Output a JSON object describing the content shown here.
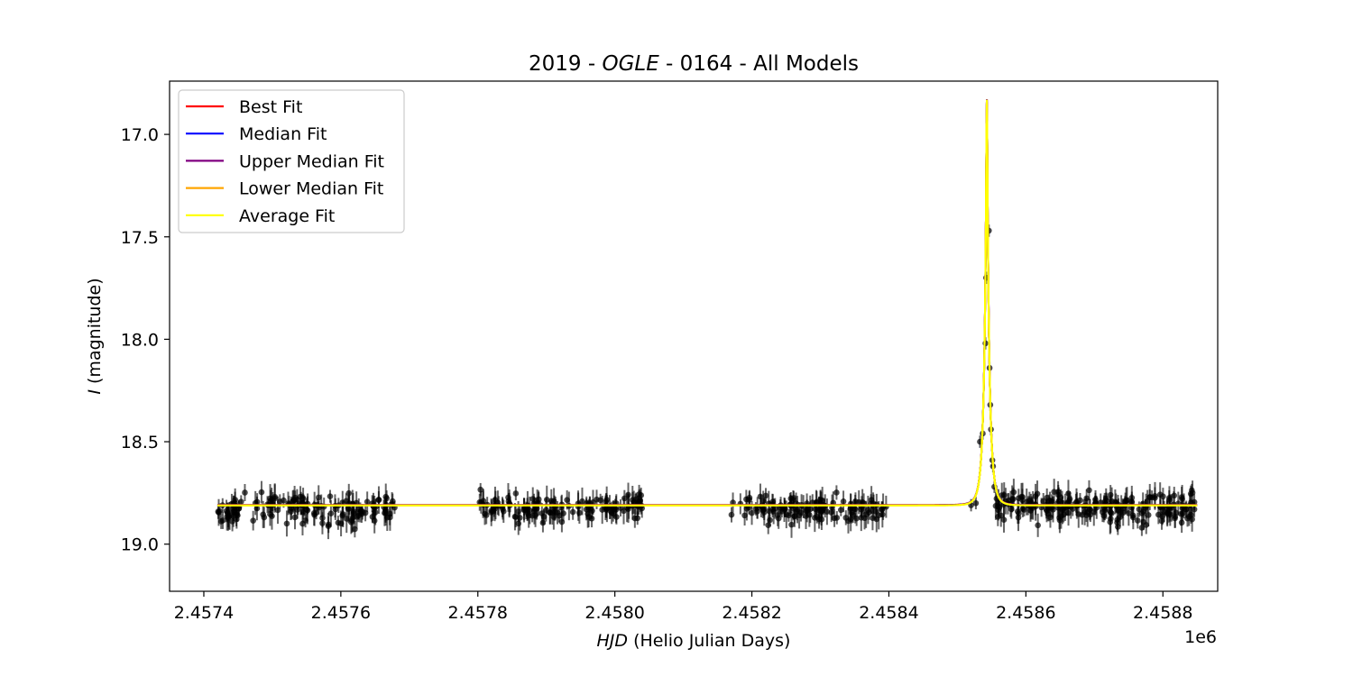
{
  "chart_data": {
    "type": "line",
    "title": {
      "prefix": "2019 - ",
      "italic": "OGLE",
      "suffix": " - 0164 - All Models"
    },
    "xlabel": {
      "italic": "HJD",
      "rest": " (Helio Julian Days)"
    },
    "ylabel": {
      "italic": "I",
      "rest": " (magnitude)"
    },
    "x_offset_text": "1e6",
    "xlim": [
      2457350,
      2458880
    ],
    "ylim": [
      19.23,
      16.74
    ],
    "y_inverted": true,
    "x_ticks": [
      {
        "value": 2457400,
        "label": "2.4574"
      },
      {
        "value": 2457600,
        "label": "2.4576"
      },
      {
        "value": 2457800,
        "label": "2.4578"
      },
      {
        "value": 2458000,
        "label": "2.4580"
      },
      {
        "value": 2458200,
        "label": "2.4582"
      },
      {
        "value": 2458400,
        "label": "2.4584"
      },
      {
        "value": 2458600,
        "label": "2.4586"
      },
      {
        "value": 2458800,
        "label": "2.4588"
      }
    ],
    "y_ticks": [
      {
        "value": 17.0,
        "label": "17.0"
      },
      {
        "value": 17.5,
        "label": "17.5"
      },
      {
        "value": 18.0,
        "label": "18.0"
      },
      {
        "value": 18.5,
        "label": "18.5"
      },
      {
        "value": 19.0,
        "label": "19.0"
      }
    ],
    "grid": false,
    "legend_position": "top-left",
    "model": {
      "baseline": 18.81,
      "peak_magnitude": 16.83,
      "t0": 2458543,
      "tE": 8.0,
      "x_range": [
        2457420,
        2458850
      ]
    },
    "series": [
      {
        "name": "Best Fit",
        "color": "#ff0000"
      },
      {
        "name": "Median Fit",
        "color": "#0000ff"
      },
      {
        "name": "Upper Median Fit",
        "color": "#800080"
      },
      {
        "name": "Lower Median Fit",
        "color": "#ffa500"
      },
      {
        "name": "Average Fit",
        "color": "#ffff00"
      }
    ],
    "observations": {
      "color": "#000000",
      "seasons": [
        {
          "x_range": [
            2457420,
            2457680
          ],
          "mean": 18.83,
          "scatter": 0.06,
          "count": 150
        },
        {
          "x_range": [
            2457800,
            2458040
          ],
          "mean": 18.82,
          "scatter": 0.05,
          "count": 130
        },
        {
          "x_range": [
            2458170,
            2458400
          ],
          "mean": 18.83,
          "scatter": 0.05,
          "count": 130
        },
        {
          "x_range": [
            2458555,
            2458850
          ],
          "mean": 18.82,
          "scatter": 0.06,
          "count": 210
        }
      ],
      "peak_points": [
        {
          "x": 2458520,
          "y": 18.81
        },
        {
          "x": 2458527,
          "y": 18.8
        },
        {
          "x": 2458533,
          "y": 18.5
        },
        {
          "x": 2458537,
          "y": 18.46
        },
        {
          "x": 2458541,
          "y": 18.02
        },
        {
          "x": 2458542,
          "y": 17.7
        },
        {
          "x": 2458546,
          "y": 17.47
        },
        {
          "x": 2458547,
          "y": 18.14
        },
        {
          "x": 2458548,
          "y": 18.32
        },
        {
          "x": 2458549,
          "y": 18.44
        },
        {
          "x": 2458551,
          "y": 18.59
        },
        {
          "x": 2458552,
          "y": 18.62
        },
        {
          "x": 2458554,
          "y": 18.72
        }
      ]
    }
  }
}
